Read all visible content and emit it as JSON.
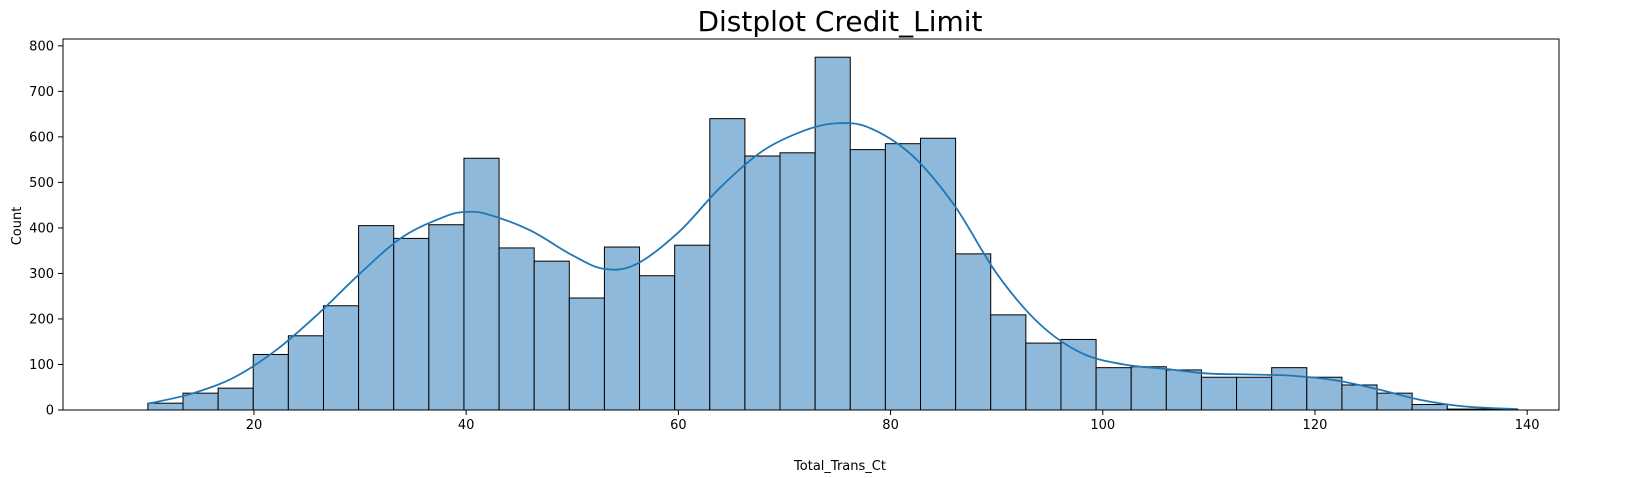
{
  "chart_data": {
    "type": "bar",
    "subtype": "histogram-with-kde",
    "title": "Distplot Credit_Limit",
    "xlabel": "Total_Trans_Ct",
    "ylabel": "Count",
    "xlim": [
      2,
      143
    ],
    "ylim": [
      0,
      815
    ],
    "xticks": [
      20,
      40,
      60,
      80,
      100,
      120,
      140
    ],
    "yticks": [
      0,
      100,
      200,
      300,
      400,
      500,
      600,
      700,
      800
    ],
    "bin_start": 10,
    "bin_width": 3.31,
    "values": [
      15,
      37,
      48,
      122,
      163,
      229,
      405,
      377,
      407,
      553,
      356,
      327,
      246,
      358,
      295,
      362,
      640,
      558,
      565,
      775,
      572,
      585,
      597,
      343,
      209,
      147,
      155,
      93,
      95,
      88,
      72,
      72,
      93,
      72,
      55,
      37,
      12,
      2,
      2
    ],
    "kde": {
      "x": [
        10,
        14,
        18,
        22,
        26,
        30,
        34,
        38,
        40,
        42,
        46,
        50,
        53,
        56,
        60,
        64,
        68,
        72,
        75,
        78,
        82,
        86,
        90,
        94,
        98,
        102,
        106,
        110,
        114,
        118,
        122,
        126,
        130,
        134,
        139
      ],
      "y": [
        14,
        35,
        70,
        130,
        210,
        300,
        380,
        425,
        435,
        430,
        395,
        340,
        310,
        320,
        390,
        490,
        570,
        615,
        630,
        620,
        560,
        450,
        300,
        190,
        125,
        100,
        90,
        80,
        78,
        75,
        65,
        45,
        22,
        8,
        2
      ]
    },
    "grid": false,
    "colors": {
      "bar_fill": "#8fb9db",
      "bar_edge": "#000000",
      "kde_line": "#1f77b4"
    }
  }
}
